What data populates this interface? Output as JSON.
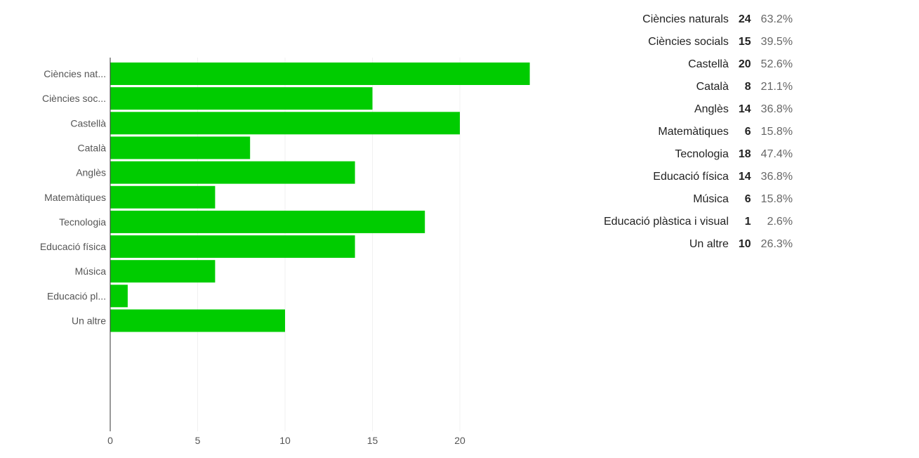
{
  "chart_data": {
    "type": "bar",
    "orientation": "horizontal",
    "categories": [
      "Ciències nat...",
      "Ciències soc...",
      "Castellà",
      "Català",
      "Anglès",
      "Matemàtiques",
      "Tecnologia",
      "Educació física",
      "Música",
      "Educació pl...",
      "Un altre"
    ],
    "values": [
      24,
      15,
      20,
      8,
      14,
      6,
      18,
      14,
      6,
      1,
      10
    ],
    "xlim": [
      0,
      24
    ],
    "xticks": [
      "0",
      "5",
      "10",
      "15",
      "20"
    ],
    "xtick_values": [
      0,
      5,
      10,
      15,
      20
    ],
    "bar_color": "#00cc00",
    "grid": true,
    "title": "",
    "xlabel": "",
    "ylabel": ""
  },
  "summary": [
    {
      "name": "Ciències naturals",
      "count": "24",
      "pct": "63.2%"
    },
    {
      "name": "Ciències socials",
      "count": "15",
      "pct": "39.5%"
    },
    {
      "name": "Castellà",
      "count": "20",
      "pct": "52.6%"
    },
    {
      "name": "Català",
      "count": "8",
      "pct": "21.1%"
    },
    {
      "name": "Anglès",
      "count": "14",
      "pct": "36.8%"
    },
    {
      "name": "Matemàtiques",
      "count": "6",
      "pct": "15.8%"
    },
    {
      "name": "Tecnologia",
      "count": "18",
      "pct": "47.4%"
    },
    {
      "name": "Educació física",
      "count": "14",
      "pct": "36.8%"
    },
    {
      "name": "Música",
      "count": "6",
      "pct": "15.8%"
    },
    {
      "name": "Educació plàstica i visual",
      "count": "1",
      "pct": "2.6%"
    },
    {
      "name": "Un altre",
      "count": "10",
      "pct": "26.3%"
    }
  ]
}
